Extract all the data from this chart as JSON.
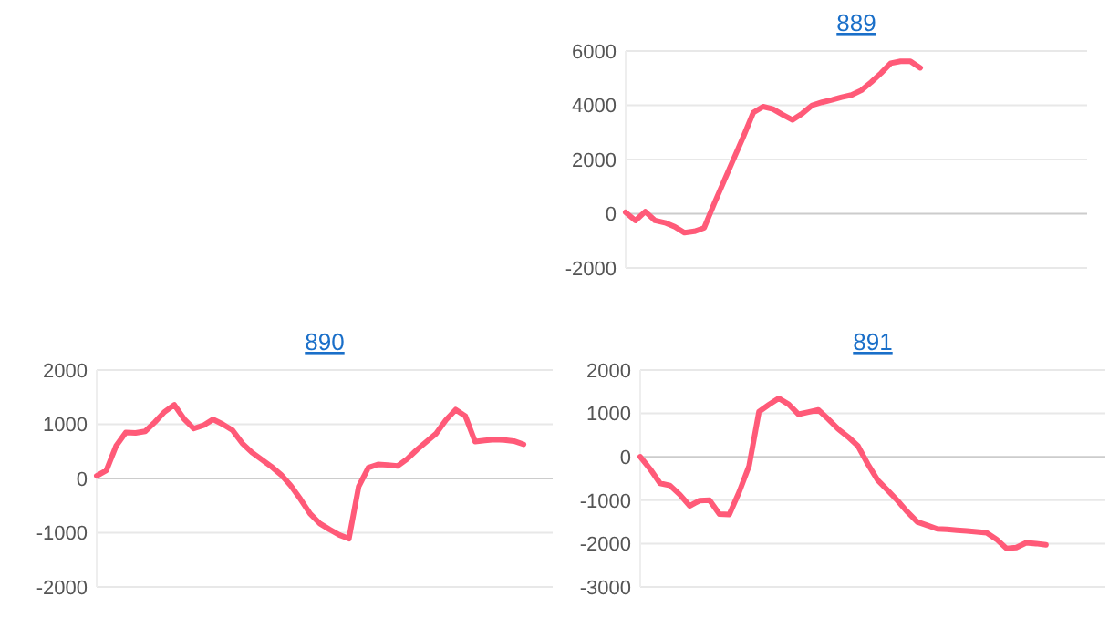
{
  "chart_data": [
    {
      "type": "line",
      "title": "889",
      "categories": [
        null,
        null,
        null,
        null,
        null,
        null,
        null,
        null,
        null,
        null,
        null,
        null,
        null,
        null,
        null,
        null,
        null,
        null,
        null,
        null,
        null,
        null,
        null,
        null,
        null,
        null,
        null,
        null,
        null,
        null,
        null,
        null,
        null,
        null,
        null,
        null,
        null,
        null,
        null,
        null,
        null,
        null,
        null,
        null,
        null,
        null,
        null,
        null
      ],
      "series": [
        {
          "color": "#ff5a78",
          "values": [
            50,
            -250,
            80,
            -250,
            -330,
            -480,
            -700,
            -650,
            -520,
            360,
            1190,
            2020,
            2850,
            3730,
            3950,
            3860,
            3650,
            3460,
            3700,
            4000,
            4110,
            4200,
            4300,
            4380,
            4550,
            4850,
            5180,
            5550,
            5620,
            5620,
            5380,
            null,
            null,
            null,
            null,
            null,
            null,
            null,
            null,
            null,
            null,
            null,
            null,
            null,
            null,
            null,
            null,
            null
          ]
        }
      ],
      "ylim": [
        -2000,
        6000
      ],
      "yticks": [
        -2000,
        0,
        2000,
        4000,
        6000
      ],
      "grid": "y",
      "tick_labels": "y"
    },
    {
      "type": "line",
      "title": "890",
      "categories": [
        null,
        null,
        null,
        null,
        null,
        null,
        null,
        null,
        null,
        null,
        null,
        null,
        null,
        null,
        null,
        null,
        null,
        null,
        null,
        null,
        null,
        null,
        null,
        null,
        null,
        null,
        null,
        null,
        null,
        null,
        null,
        null,
        null,
        null,
        null,
        null,
        null,
        null,
        null,
        null,
        null,
        null,
        null,
        null,
        null,
        null,
        null,
        null
      ],
      "series": [
        {
          "color": "#ff5a78",
          "values": [
            50,
            150,
            600,
            850,
            840,
            870,
            1040,
            1230,
            1360,
            1100,
            920,
            980,
            1090,
            1000,
            890,
            650,
            480,
            350,
            220,
            70,
            -130,
            -380,
            -650,
            -830,
            -940,
            -1040,
            -1110,
            -150,
            200,
            260,
            250,
            230,
            360,
            530,
            680,
            830,
            1080,
            1270,
            1150,
            680,
            700,
            720,
            710,
            690,
            630,
            null,
            null,
            null
          ]
        }
      ],
      "ylim": [
        -2000,
        2000
      ],
      "yticks": [
        -2000,
        -1000,
        0,
        1000,
        2000
      ],
      "grid": "y",
      "tick_labels": "y"
    },
    {
      "type": "line",
      "title": "891",
      "categories": [
        null,
        null,
        null,
        null,
        null,
        null,
        null,
        null,
        null,
        null,
        null,
        null,
        null,
        null,
        null,
        null,
        null,
        null,
        null,
        null,
        null,
        null,
        null,
        null,
        null,
        null,
        null,
        null,
        null,
        null,
        null,
        null,
        null,
        null,
        null,
        null,
        null,
        null,
        null,
        null,
        null,
        null,
        null,
        null,
        null,
        null,
        null,
        null
      ],
      "series": [
        {
          "color": "#ff5a78",
          "values": [
            0,
            -280,
            -610,
            -660,
            -870,
            -1130,
            -1010,
            -1000,
            -1320,
            -1330,
            -810,
            -210,
            1040,
            1200,
            1350,
            1210,
            980,
            1030,
            1080,
            870,
            640,
            460,
            250,
            -170,
            -540,
            -770,
            -1010,
            -1270,
            -1500,
            -1580,
            -1660,
            -1670,
            -1690,
            -1710,
            -1730,
            -1750,
            -1900,
            -2110,
            -2090,
            -1980,
            -2000,
            -2030,
            null,
            null,
            null,
            null,
            null,
            null
          ]
        }
      ],
      "ylim": [
        -3000,
        2000
      ],
      "yticks": [
        -3000,
        -2000,
        -1000,
        0,
        1000,
        2000
      ],
      "grid": "y",
      "tick_labels": "y"
    }
  ]
}
